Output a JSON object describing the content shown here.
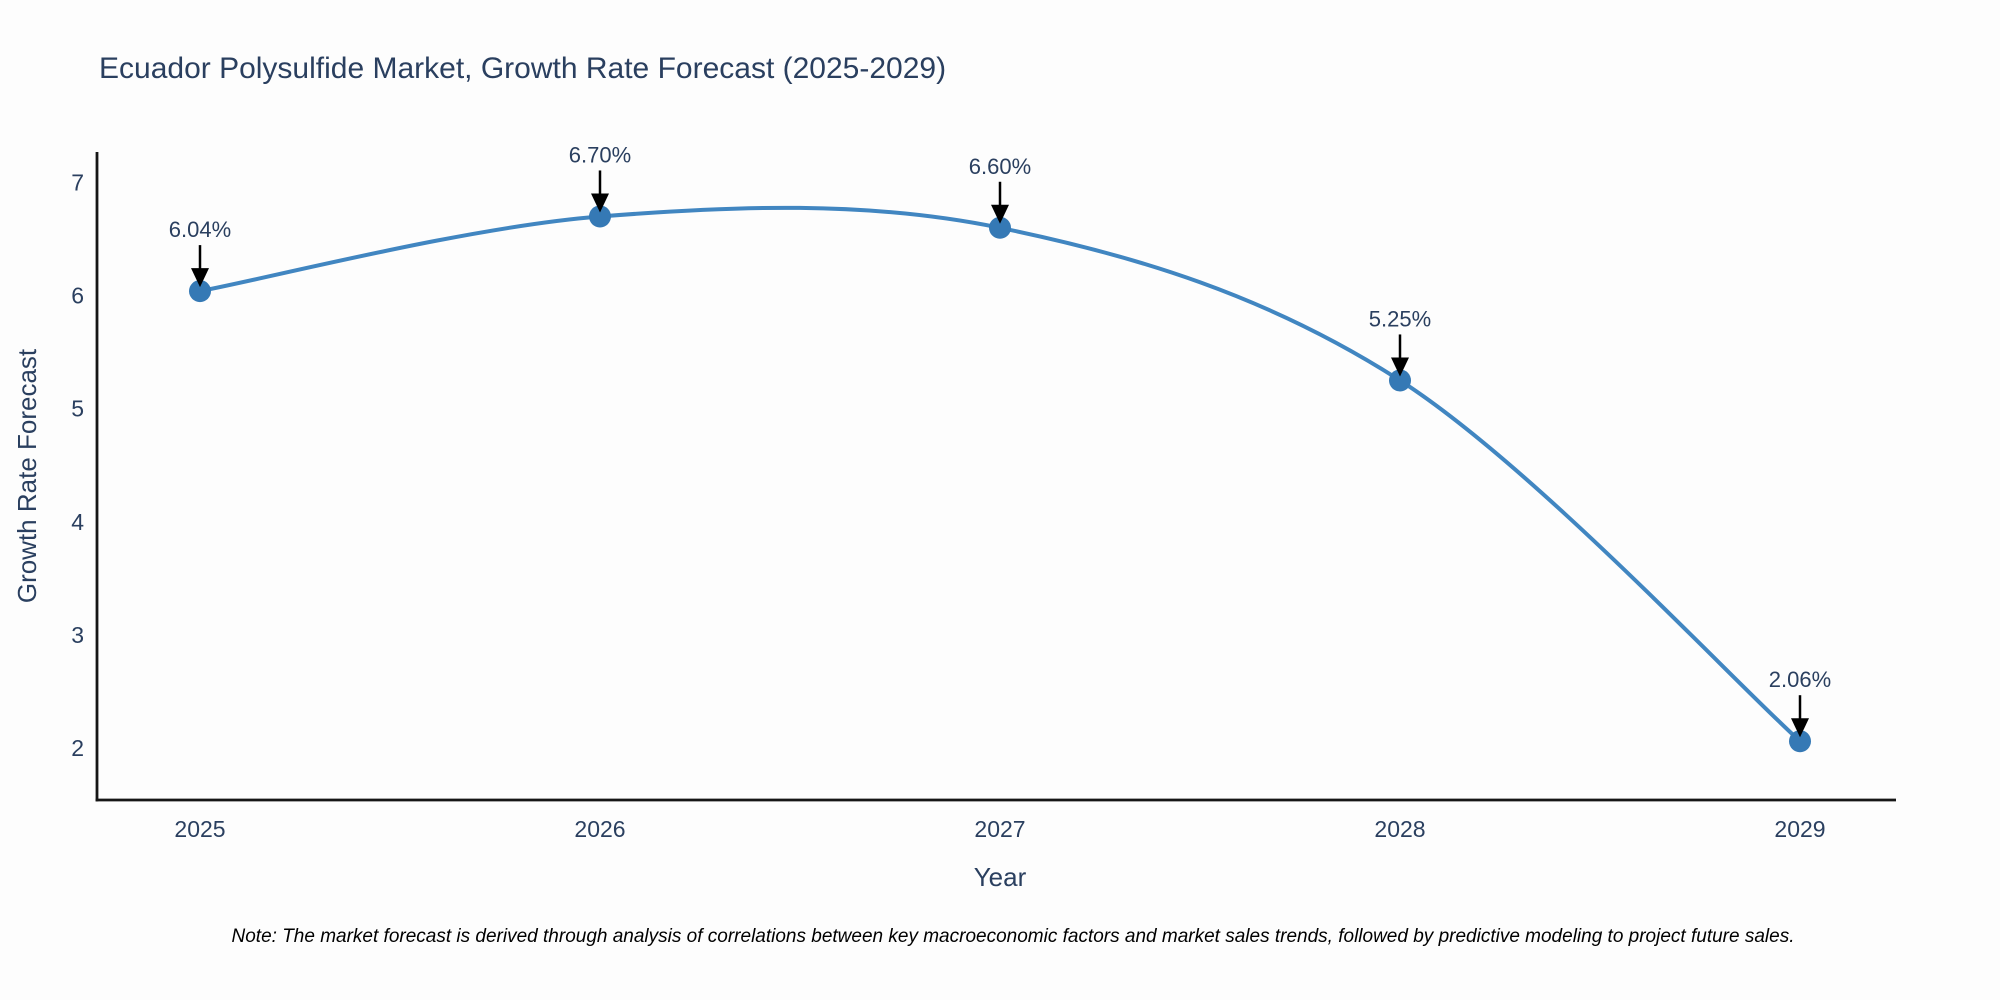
{
  "note": "Note: The market forecast is derived through analysis of correlations between key macroeconomic factors and market sales trends, followed by predictive modeling to project future sales.",
  "chart_data": {
    "type": "line",
    "title": "Ecuador Polysulfide Market, Growth Rate Forecast (2025-2029)",
    "xlabel": "Year",
    "ylabel": "Growth Rate Forecast",
    "series_name": "Growth Rate Forecast",
    "x": [
      2025,
      2026,
      2027,
      2028,
      2029
    ],
    "values": [
      6.04,
      6.7,
      6.6,
      5.25,
      2.06
    ],
    "point_labels": [
      "6.04%",
      "6.70%",
      "6.60%",
      "5.25%",
      "2.06%"
    ],
    "x_tick_labels": [
      "2025",
      "2026",
      "2027",
      "2028",
      "2029"
    ],
    "y_ticks": [
      2,
      3,
      4,
      5,
      6,
      7
    ],
    "xlim": [
      2024.7425,
      2029.24
    ],
    "ylim": [
      1.54,
      7.27
    ],
    "line_shape": "spline",
    "grid": false,
    "legend_position": "none",
    "colors": {
      "line": "#4186c1",
      "marker": "#3579b5",
      "axis": "#161616",
      "text": "#2a3f5f",
      "note": "#000000",
      "arrow": "#000000",
      "background": "#fdfdfd"
    }
  }
}
